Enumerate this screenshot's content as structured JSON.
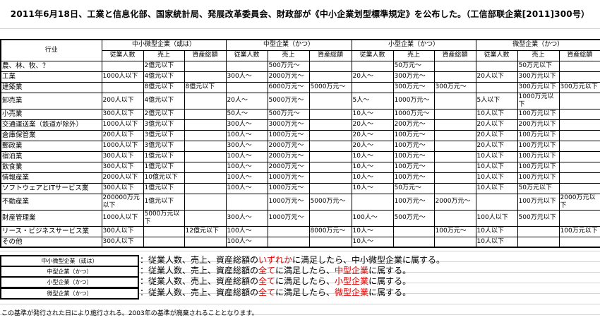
{
  "title": "2011年6月18日、工業と信息化部、国家統計局、発展改革委員会、財政部が《中小企業划型標準規定》を公布した。（工信部联企業[2011]300号）",
  "table": {
    "industry_header": "行业",
    "groups": [
      "中小微型企業（或は）",
      "中型企業（かつ）",
      "小型企業（かつ）",
      "微型企業（かつ）"
    ],
    "subheaders": [
      "従業人数",
      "売上",
      "資産総額"
    ],
    "rows": [
      {
        "industry": "農、林、牧、？",
        "cells": [
          "",
          "2億元以下",
          "",
          "",
          "500万元～",
          "",
          "",
          "50万元～",
          "",
          "",
          "50万元以下",
          ""
        ]
      },
      {
        "industry": "工業",
        "cells": [
          "1000人以下",
          "4億元以下",
          "",
          "300人～",
          "2000万元～",
          "",
          "20人～",
          "300万元～",
          "",
          "20人以下",
          "300万元以下",
          ""
        ]
      },
      {
        "industry": "建築業",
        "cells": [
          "",
          "8億元以下",
          "8億元以下",
          "",
          "6000万元～",
          "5000万元～",
          "",
          "300万元～",
          "300万元～",
          "",
          "300万元以下",
          "300万元以下"
        ]
      },
      {
        "industry": "卸売業",
        "cells": [
          "200人以下",
          "4億元以下",
          "",
          "20人～",
          "5000万元～",
          "",
          "5人～",
          "1000万元～",
          "",
          "5人以下",
          "1000万元以下",
          ""
        ]
      },
      {
        "industry": "小売業",
        "cells": [
          "300人以下",
          "2億元以下",
          "",
          "50人～",
          "500万元～",
          "",
          "10人～",
          "1000万元～",
          "",
          "10人以下",
          "100万元以下",
          ""
        ]
      },
      {
        "industry": "交通運送業（鉄道が除外）",
        "cells": [
          "1000人以下",
          "3億元以下",
          "",
          "300人～",
          "3000万元～",
          "",
          "20人～",
          "200万元～",
          "",
          "20人以下",
          "200万元以下",
          ""
        ]
      },
      {
        "industry": "倉庫保管業",
        "cells": [
          "200人以下",
          "3億元以下",
          "",
          "100人～",
          "1000万元～",
          "",
          "20人～",
          "100万元～",
          "",
          "20人以下",
          "100万元以下",
          ""
        ]
      },
      {
        "industry": "郵政業",
        "cells": [
          "1000人以下",
          "3億元以下",
          "",
          "300人～",
          "2000万元～",
          "",
          "20人～",
          "100万元～",
          "",
          "20人以下",
          "100万元以下",
          ""
        ]
      },
      {
        "industry": "宿泊業",
        "cells": [
          "300人以下",
          "1億元以下",
          "",
          "100人～",
          "2000万元～",
          "",
          "10人～",
          "100万元～",
          "",
          "10人以下",
          "100万元以下",
          ""
        ]
      },
      {
        "industry": "飲食業",
        "cells": [
          "300人以下",
          "1億元以下",
          "",
          "100人～",
          "2000万元～",
          "",
          "10人～",
          "100万元～",
          "",
          "10人以下",
          "100万元以下",
          ""
        ]
      },
      {
        "industry": "情報産業",
        "cells": [
          "2000人以下",
          "10億元以下",
          "",
          "100人～",
          "1000万元～",
          "",
          "10人～",
          "100万元～",
          "",
          "10人以下",
          "100万元以下",
          ""
        ]
      },
      {
        "industry": "ソフトウェアとITサービス業",
        "cells": [
          "300人以下",
          "1億元以下",
          "",
          "100人～",
          "1000万元～",
          "",
          "10人～",
          "50万元～",
          "",
          "10人以下",
          "50万元以下",
          ""
        ]
      },
      {
        "industry": "不動産業",
        "cells": [
          "200000万元以下",
          "1億元以下",
          "",
          "",
          "1000万元～",
          "5000万元～",
          "",
          "100万元～",
          "2000万元～",
          "",
          "100万元以下",
          "2000万元以下"
        ]
      },
      {
        "industry": "財産管理業",
        "cells": [
          "1000人以下",
          "5000万元以下",
          "",
          "300人～",
          "1000万元～",
          "",
          "100人～",
          "500万元～",
          "",
          "100人以下",
          "500万元以下",
          ""
        ]
      },
      {
        "industry": "リース・ビジネスサービス業",
        "cells": [
          "300人以下",
          "",
          "12億元以下",
          "100人～",
          "",
          "8000万元～",
          "10人～",
          "",
          "100万元～",
          "10人以下",
          "",
          "100万元以下"
        ]
      },
      {
        "industry": "その他",
        "cells": [
          "300人以下",
          "",
          "",
          "100人～",
          "",
          "",
          "10人～",
          "",
          "",
          "10人以下",
          "",
          ""
        ]
      }
    ]
  },
  "legend": [
    {
      "label": "中小微型企業（或は）",
      "parts": [
        {
          "t": "：従業人数、売上、資産総額の",
          "red": false
        },
        {
          "t": "いずれか",
          "red": true
        },
        {
          "t": "に満足したら、中小微型企業に属する。",
          "red": false
        }
      ]
    },
    {
      "label": "中型企業（かつ）",
      "parts": [
        {
          "t": "：従業人数、売上、資産総額の",
          "red": false
        },
        {
          "t": "全て",
          "red": true
        },
        {
          "t": "に満足したら、",
          "red": false
        },
        {
          "t": "中型企業",
          "red": true
        },
        {
          "t": "に属する。",
          "red": false
        }
      ]
    },
    {
      "label": "小型企業（かつ）",
      "parts": [
        {
          "t": "：従業人数、売上、資産総額の",
          "red": false
        },
        {
          "t": "全て",
          "red": true
        },
        {
          "t": "に満足したら、",
          "red": false
        },
        {
          "t": "小型企業",
          "red": true
        },
        {
          "t": "に属する。",
          "red": false
        }
      ]
    },
    {
      "label": "微型企業（かつ）",
      "parts": [
        {
          "t": "：従業人数、売上、資産総額の",
          "red": false
        },
        {
          "t": "全て",
          "red": true
        },
        {
          "t": "に満足したら、",
          "red": false
        },
        {
          "t": "微型企業",
          "red": true
        },
        {
          "t": "に属する。",
          "red": false
        }
      ]
    }
  ],
  "footer": "この基準が発行された日により施行される。2003年の基準が廃棄されることとなります。",
  "colors": {
    "highlight": "#e00000",
    "gridline": "#d4d4d4",
    "border": "#000000"
  }
}
